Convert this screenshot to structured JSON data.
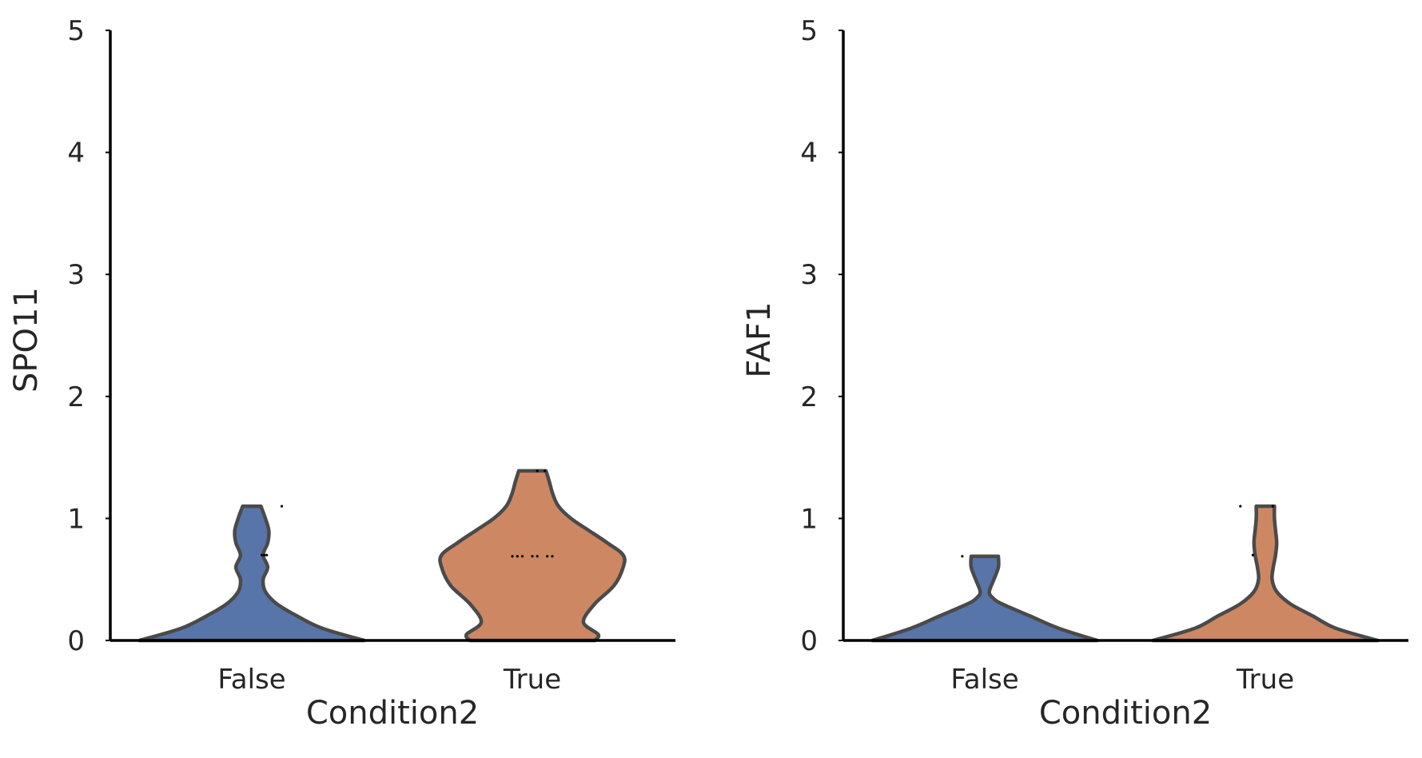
{
  "chart_data": [
    {
      "type": "violin",
      "xlabel": "Condition2",
      "ylabel": "SPO11",
      "categories": [
        "False",
        "True"
      ],
      "ylim": [
        0,
        5
      ],
      "yticks": [
        0,
        1,
        2,
        3,
        4,
        5
      ],
      "colors": [
        "#5875a9",
        "#cd8863"
      ],
      "grid": false,
      "violins": [
        {
          "category": "False",
          "min": 0,
          "max": 1.1,
          "profile": [
            [
              0,
              0.99
            ],
            [
              0.1,
              0.62
            ],
            [
              0.2,
              0.4
            ],
            [
              0.3,
              0.22
            ],
            [
              0.4,
              0.12
            ],
            [
              0.5,
              0.1
            ],
            [
              0.6,
              0.14
            ],
            [
              0.7,
              0.1
            ],
            [
              0.8,
              0.14
            ],
            [
              0.9,
              0.15
            ],
            [
              1.0,
              0.12
            ],
            [
              1.1,
              0.08
            ]
          ],
          "points": [
            [
              0.12,
              1.1
            ],
            [
              0.06,
              0.7
            ],
            [
              0.05,
              0.7
            ],
            [
              0.04,
              0.7
            ]
          ]
        },
        {
          "category": "True",
          "min": 0,
          "max": 1.39,
          "profile": [
            [
              0,
              0.55
            ],
            [
              0.05,
              0.58
            ],
            [
              0.15,
              0.45
            ],
            [
              0.3,
              0.55
            ],
            [
              0.45,
              0.72
            ],
            [
              0.6,
              0.8
            ],
            [
              0.7,
              0.8
            ],
            [
              0.8,
              0.66
            ],
            [
              0.9,
              0.5
            ],
            [
              1.0,
              0.34
            ],
            [
              1.1,
              0.23
            ],
            [
              1.2,
              0.18
            ],
            [
              1.3,
              0.15
            ],
            [
              1.39,
              0.12
            ]
          ],
          "points": [
            [
              -0.08,
              0.69
            ],
            [
              -0.06,
              0.69
            ],
            [
              -0.04,
              0.69
            ],
            [
              0.0,
              0.69
            ],
            [
              0.02,
              0.69
            ],
            [
              0.06,
              0.69
            ],
            [
              0.08,
              0.69
            ],
            [
              0.02,
              1.39
            ],
            [
              0.05,
              1.39
            ]
          ]
        }
      ]
    },
    {
      "type": "violin",
      "xlabel": "Condition2",
      "ylabel": "FAF1",
      "categories": [
        "False",
        "True"
      ],
      "ylim": [
        0,
        5
      ],
      "yticks": [
        0,
        1,
        2,
        3,
        4,
        5
      ],
      "colors": [
        "#5875a9",
        "#cd8863"
      ],
      "grid": false,
      "violins": [
        {
          "category": "False",
          "min": 0,
          "max": 0.69,
          "profile": [
            [
              0,
              0.99
            ],
            [
              0.1,
              0.65
            ],
            [
              0.2,
              0.4
            ],
            [
              0.3,
              0.15
            ],
            [
              0.35,
              0.07
            ],
            [
              0.4,
              0.04
            ],
            [
              0.5,
              0.08
            ],
            [
              0.6,
              0.12
            ],
            [
              0.69,
              0.12
            ]
          ],
          "points": [
            [
              -0.09,
              0.69
            ]
          ]
        },
        {
          "category": "True",
          "min": 0,
          "max": 1.1,
          "profile": [
            [
              0,
              0.99
            ],
            [
              0.1,
              0.62
            ],
            [
              0.2,
              0.42
            ],
            [
              0.3,
              0.22
            ],
            [
              0.4,
              0.1
            ],
            [
              0.5,
              0.06
            ],
            [
              0.6,
              0.07
            ],
            [
              0.7,
              0.09
            ],
            [
              0.8,
              0.1
            ],
            [
              0.9,
              0.09
            ],
            [
              1.0,
              0.08
            ],
            [
              1.1,
              0.08
            ]
          ],
          "points": [
            [
              -0.1,
              1.1
            ],
            [
              0.03,
              1.1
            ],
            [
              -0.05,
              0.7
            ]
          ]
        }
      ]
    }
  ]
}
